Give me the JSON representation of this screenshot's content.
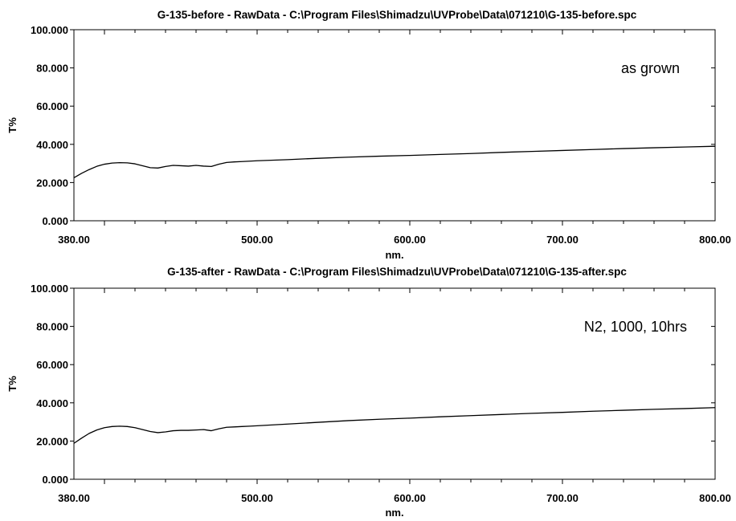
{
  "chart_data": [
    {
      "type": "line",
      "title": "G-135-before - RawData - C:\\Program Files\\Shimadzu\\UVProbe\\Data\\071210\\G-135-before.spc",
      "xlabel": "nm.",
      "ylabel": "T%",
      "xlim": [
        380,
        800
      ],
      "ylim": [
        0,
        100
      ],
      "xticks": [
        "380.00",
        "500.00",
        "600.00",
        "700.00",
        "800.00"
      ],
      "yticks": [
        "0.000",
        "20.000",
        "40.000",
        "60.000",
        "80.000",
        "100.000"
      ],
      "annotation": "as grown",
      "grid": false,
      "line_color": "#000000",
      "series": [
        {
          "x": [
            380,
            385,
            390,
            395,
            400,
            405,
            410,
            415,
            420,
            425,
            430,
            435,
            440,
            445,
            450,
            455,
            460,
            465,
            470,
            475,
            480,
            485,
            490,
            495,
            500,
            520,
            540,
            560,
            580,
            600,
            620,
            640,
            660,
            680,
            700,
            720,
            740,
            760,
            780,
            800
          ],
          "y": [
            22.5,
            24.8,
            26.8,
            28.5,
            29.6,
            30.2,
            30.4,
            30.3,
            29.8,
            28.8,
            27.8,
            27.6,
            28.4,
            29.0,
            28.8,
            28.6,
            29.0,
            28.6,
            28.4,
            29.6,
            30.5,
            30.8,
            31.0,
            31.2,
            31.4,
            32.0,
            32.7,
            33.3,
            33.8,
            34.2,
            34.7,
            35.2,
            35.8,
            36.3,
            36.8,
            37.3,
            37.8,
            38.2,
            38.6,
            39.0
          ]
        }
      ]
    },
    {
      "type": "line",
      "title": "G-135-after - RawData - C:\\Program Files\\Shimadzu\\UVProbe\\Data\\071210\\G-135-after.spc",
      "xlabel": "nm.",
      "ylabel": "T%",
      "xlim": [
        380,
        800
      ],
      "ylim": [
        0,
        100
      ],
      "xticks": [
        "380.00",
        "500.00",
        "600.00",
        "700.00",
        "800.00"
      ],
      "yticks": [
        "0.000",
        "20.000",
        "40.000",
        "60.000",
        "80.000",
        "100.000"
      ],
      "annotation": "N2, 1000, 10hrs",
      "grid": false,
      "line_color": "#000000",
      "series": [
        {
          "x": [
            380,
            385,
            390,
            395,
            400,
            405,
            410,
            415,
            420,
            425,
            430,
            435,
            440,
            445,
            450,
            455,
            460,
            465,
            470,
            475,
            480,
            485,
            490,
            495,
            500,
            520,
            540,
            560,
            580,
            600,
            620,
            640,
            660,
            680,
            700,
            720,
            740,
            760,
            780,
            800
          ],
          "y": [
            18.8,
            21.5,
            24.0,
            25.8,
            27.0,
            27.6,
            27.8,
            27.6,
            27.0,
            26.0,
            25.0,
            24.4,
            24.8,
            25.4,
            25.6,
            25.6,
            25.8,
            26.0,
            25.4,
            26.4,
            27.2,
            27.4,
            27.6,
            27.8,
            28.0,
            28.9,
            29.8,
            30.7,
            31.4,
            32.0,
            32.7,
            33.3,
            33.9,
            34.5,
            35.0,
            35.6,
            36.1,
            36.6,
            37.0,
            37.5
          ]
        }
      ]
    }
  ]
}
